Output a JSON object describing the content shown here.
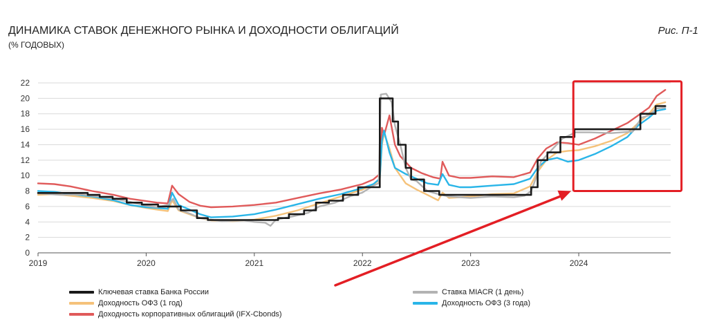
{
  "header": {
    "title": "ДИНАМИКА СТАВОК ДЕНЕЖНОГО РЫНКА И ДОХОДНОСТИ ОБЛИГАЦИЙ",
    "subtitle": "(% ГОДОВЫХ)",
    "figure_ref": "Рис. П-1"
  },
  "colors": {
    "key_rate": "#1a1a1a",
    "miacr": "#b3b3b3",
    "ofz1": "#f5c27a",
    "ofz3": "#29b5e8",
    "corp": "#e05a5a",
    "highlight": "#e31e24",
    "grid": "#d9d9d9"
  },
  "chart_data": {
    "type": "line",
    "title": "ДИНАМИКА СТАВОК ДЕНЕЖНОГО РЫНКА И ДОХОДНОСТИ ОБЛИГАЦИЙ",
    "ylabel": "% годовых",
    "xlim": [
      2019.0,
      2024.85
    ],
    "ylim": [
      0,
      22
    ],
    "y_ticks": [
      0,
      2,
      4,
      6,
      8,
      10,
      12,
      14,
      16,
      18,
      20,
      22
    ],
    "x_ticks": [
      {
        "value": 2019,
        "label": "2019"
      },
      {
        "value": 2020,
        "label": "2020"
      },
      {
        "value": 2021,
        "label": "2021"
      },
      {
        "value": 2022,
        "label": "2022"
      },
      {
        "value": 2023,
        "label": "2023"
      },
      {
        "value": 2024,
        "label": "2024"
      }
    ],
    "grid": true,
    "series": [
      {
        "key": "key_rate",
        "name": "Ключевая ставка Банка России",
        "color_key": "key_rate",
        "points": [
          [
            2019.0,
            7.75
          ],
          [
            2019.46,
            7.75
          ],
          [
            2019.46,
            7.5
          ],
          [
            2019.57,
            7.5
          ],
          [
            2019.57,
            7.25
          ],
          [
            2019.69,
            7.25
          ],
          [
            2019.69,
            7.0
          ],
          [
            2019.82,
            7.0
          ],
          [
            2019.82,
            6.5
          ],
          [
            2019.96,
            6.5
          ],
          [
            2019.96,
            6.25
          ],
          [
            2020.11,
            6.25
          ],
          [
            2020.11,
            6.0
          ],
          [
            2020.32,
            6.0
          ],
          [
            2020.32,
            5.5
          ],
          [
            2020.47,
            5.5
          ],
          [
            2020.47,
            4.5
          ],
          [
            2020.57,
            4.5
          ],
          [
            2020.57,
            4.25
          ],
          [
            2021.22,
            4.25
          ],
          [
            2021.22,
            4.5
          ],
          [
            2021.32,
            4.5
          ],
          [
            2021.32,
            5.0
          ],
          [
            2021.46,
            5.0
          ],
          [
            2021.46,
            5.5
          ],
          [
            2021.57,
            5.5
          ],
          [
            2021.57,
            6.5
          ],
          [
            2021.69,
            6.5
          ],
          [
            2021.69,
            6.75
          ],
          [
            2021.82,
            6.75
          ],
          [
            2021.82,
            7.5
          ],
          [
            2021.96,
            7.5
          ],
          [
            2021.96,
            8.5
          ],
          [
            2022.16,
            8.5
          ],
          [
            2022.16,
            20.0
          ],
          [
            2022.28,
            20.0
          ],
          [
            2022.28,
            17.0
          ],
          [
            2022.33,
            17.0
          ],
          [
            2022.33,
            14.0
          ],
          [
            2022.4,
            14.0
          ],
          [
            2022.4,
            11.0
          ],
          [
            2022.45,
            11.0
          ],
          [
            2022.45,
            9.5
          ],
          [
            2022.57,
            9.5
          ],
          [
            2022.57,
            8.0
          ],
          [
            2022.71,
            8.0
          ],
          [
            2022.71,
            7.5
          ],
          [
            2023.56,
            7.5
          ],
          [
            2023.56,
            8.5
          ],
          [
            2023.62,
            8.5
          ],
          [
            2023.62,
            12.0
          ],
          [
            2023.71,
            12.0
          ],
          [
            2023.71,
            13.0
          ],
          [
            2023.83,
            13.0
          ],
          [
            2023.83,
            15.0
          ],
          [
            2023.96,
            15.0
          ],
          [
            2023.96,
            16.0
          ],
          [
            2024.57,
            16.0
          ],
          [
            2024.57,
            18.0
          ],
          [
            2024.71,
            18.0
          ],
          [
            2024.71,
            19.0
          ],
          [
            2024.8,
            19.0
          ]
        ]
      },
      {
        "key": "miacr",
        "name": "Ставка MIACR (1 день)",
        "color_key": "miacr",
        "points": [
          [
            2019.0,
            7.7
          ],
          [
            2019.2,
            7.5
          ],
          [
            2019.4,
            7.55
          ],
          [
            2019.55,
            7.3
          ],
          [
            2019.7,
            7.0
          ],
          [
            2019.85,
            6.6
          ],
          [
            2020.0,
            6.1
          ],
          [
            2020.1,
            5.9
          ],
          [
            2020.2,
            6.2
          ],
          [
            2020.25,
            7.0
          ],
          [
            2020.3,
            5.6
          ],
          [
            2020.4,
            5.1
          ],
          [
            2020.5,
            4.5
          ],
          [
            2020.7,
            4.1
          ],
          [
            2020.9,
            4.2
          ],
          [
            2021.0,
            4.0
          ],
          [
            2021.1,
            3.9
          ],
          [
            2021.15,
            3.5
          ],
          [
            2021.2,
            4.3
          ],
          [
            2021.35,
            4.7
          ],
          [
            2021.5,
            5.2
          ],
          [
            2021.6,
            6.0
          ],
          [
            2021.75,
            6.5
          ],
          [
            2021.9,
            7.4
          ],
          [
            2022.0,
            7.8
          ],
          [
            2022.1,
            8.7
          ],
          [
            2022.15,
            9.0
          ],
          [
            2022.17,
            20.5
          ],
          [
            2022.22,
            20.6
          ],
          [
            2022.27,
            19.5
          ],
          [
            2022.3,
            16.5
          ],
          [
            2022.35,
            14.0
          ],
          [
            2022.4,
            11.0
          ],
          [
            2022.45,
            9.5
          ],
          [
            2022.5,
            9.3
          ],
          [
            2022.6,
            8.0
          ],
          [
            2022.7,
            7.6
          ],
          [
            2022.8,
            7.3
          ],
          [
            2022.9,
            7.2
          ],
          [
            2023.0,
            7.1
          ],
          [
            2023.2,
            7.3
          ],
          [
            2023.4,
            7.2
          ],
          [
            2023.5,
            7.4
          ],
          [
            2023.56,
            8.0
          ],
          [
            2023.6,
            9.5
          ],
          [
            2023.65,
            11.8
          ],
          [
            2023.72,
            12.9
          ],
          [
            2023.85,
            14.8
          ],
          [
            2023.97,
            15.6
          ],
          [
            2024.1,
            15.6
          ],
          [
            2024.3,
            15.5
          ],
          [
            2024.5,
            15.7
          ],
          [
            2024.58,
            17.5
          ],
          [
            2024.65,
            17.8
          ],
          [
            2024.72,
            18.7
          ],
          [
            2024.8,
            18.8
          ]
        ]
      },
      {
        "key": "ofz1",
        "name": "Доходность ОФЗ (1 год)",
        "color_key": "ofz1",
        "points": [
          [
            2019.0,
            7.5
          ],
          [
            2019.15,
            7.6
          ],
          [
            2019.3,
            7.4
          ],
          [
            2019.5,
            7.1
          ],
          [
            2019.7,
            6.7
          ],
          [
            2019.85,
            6.2
          ],
          [
            2020.0,
            5.8
          ],
          [
            2020.1,
            5.6
          ],
          [
            2020.2,
            5.4
          ],
          [
            2020.24,
            6.8
          ],
          [
            2020.3,
            5.5
          ],
          [
            2020.4,
            5.0
          ],
          [
            2020.5,
            4.5
          ],
          [
            2020.6,
            4.2
          ],
          [
            2020.8,
            4.1
          ],
          [
            2021.0,
            4.3
          ],
          [
            2021.2,
            4.8
          ],
          [
            2021.4,
            5.5
          ],
          [
            2021.6,
            6.4
          ],
          [
            2021.8,
            7.3
          ],
          [
            2022.0,
            8.2
          ],
          [
            2022.1,
            8.8
          ],
          [
            2022.16,
            9.5
          ],
          [
            2022.18,
            14.0
          ],
          [
            2022.2,
            15.5
          ],
          [
            2022.25,
            13.5
          ],
          [
            2022.3,
            11.0
          ],
          [
            2022.4,
            9.0
          ],
          [
            2022.5,
            8.2
          ],
          [
            2022.6,
            7.5
          ],
          [
            2022.7,
            6.8
          ],
          [
            2022.74,
            7.8
          ],
          [
            2022.8,
            7.1
          ],
          [
            2022.9,
            7.2
          ],
          [
            2023.0,
            7.3
          ],
          [
            2023.2,
            7.6
          ],
          [
            2023.4,
            7.7
          ],
          [
            2023.55,
            8.6
          ],
          [
            2023.62,
            10.5
          ],
          [
            2023.7,
            12.0
          ],
          [
            2023.8,
            13.0
          ],
          [
            2023.9,
            13.2
          ],
          [
            2024.0,
            13.3
          ],
          [
            2024.15,
            13.8
          ],
          [
            2024.3,
            14.5
          ],
          [
            2024.45,
            15.5
          ],
          [
            2024.55,
            16.8
          ],
          [
            2024.65,
            18.0
          ],
          [
            2024.72,
            19.2
          ],
          [
            2024.8,
            19.5
          ]
        ]
      },
      {
        "key": "ofz3",
        "name": "Доходность ОФЗ (3 года)",
        "color_key": "ofz3",
        "points": [
          [
            2019.0,
            8.0
          ],
          [
            2019.15,
            7.9
          ],
          [
            2019.3,
            7.6
          ],
          [
            2019.5,
            7.3
          ],
          [
            2019.7,
            6.8
          ],
          [
            2019.85,
            6.2
          ],
          [
            2020.0,
            5.9
          ],
          [
            2020.1,
            5.8
          ],
          [
            2020.2,
            5.7
          ],
          [
            2020.24,
            7.8
          ],
          [
            2020.3,
            6.2
          ],
          [
            2020.4,
            5.6
          ],
          [
            2020.5,
            5.0
          ],
          [
            2020.6,
            4.6
          ],
          [
            2020.8,
            4.7
          ],
          [
            2021.0,
            5.0
          ],
          [
            2021.2,
            5.6
          ],
          [
            2021.4,
            6.3
          ],
          [
            2021.6,
            7.0
          ],
          [
            2021.8,
            7.6
          ],
          [
            2022.0,
            8.4
          ],
          [
            2022.1,
            8.9
          ],
          [
            2022.16,
            9.6
          ],
          [
            2022.18,
            14.5
          ],
          [
            2022.2,
            15.8
          ],
          [
            2022.25,
            13.0
          ],
          [
            2022.3,
            11.0
          ],
          [
            2022.4,
            10.2
          ],
          [
            2022.5,
            9.6
          ],
          [
            2022.6,
            9.0
          ],
          [
            2022.7,
            8.8
          ],
          [
            2022.74,
            10.2
          ],
          [
            2022.8,
            8.8
          ],
          [
            2022.9,
            8.5
          ],
          [
            2023.0,
            8.5
          ],
          [
            2023.2,
            8.7
          ],
          [
            2023.4,
            8.9
          ],
          [
            2023.55,
            9.6
          ],
          [
            2023.62,
            11.0
          ],
          [
            2023.7,
            12.0
          ],
          [
            2023.8,
            12.3
          ],
          [
            2023.9,
            11.8
          ],
          [
            2024.0,
            12.0
          ],
          [
            2024.15,
            12.8
          ],
          [
            2024.3,
            13.8
          ],
          [
            2024.45,
            15.0
          ],
          [
            2024.55,
            16.5
          ],
          [
            2024.65,
            17.5
          ],
          [
            2024.72,
            18.4
          ],
          [
            2024.8,
            18.6
          ]
        ]
      },
      {
        "key": "corp",
        "name": "Доходность корпоративных облигаций (IFX-Cbonds)",
        "color_key": "corp",
        "points": [
          [
            2019.0,
            9.0
          ],
          [
            2019.15,
            8.9
          ],
          [
            2019.3,
            8.6
          ],
          [
            2019.5,
            8.0
          ],
          [
            2019.7,
            7.5
          ],
          [
            2019.85,
            7.0
          ],
          [
            2020.0,
            6.7
          ],
          [
            2020.1,
            6.5
          ],
          [
            2020.2,
            6.4
          ],
          [
            2020.24,
            8.7
          ],
          [
            2020.3,
            7.6
          ],
          [
            2020.4,
            6.6
          ],
          [
            2020.5,
            6.1
          ],
          [
            2020.6,
            5.9
          ],
          [
            2020.8,
            6.0
          ],
          [
            2021.0,
            6.2
          ],
          [
            2021.2,
            6.5
          ],
          [
            2021.4,
            7.1
          ],
          [
            2021.6,
            7.7
          ],
          [
            2021.8,
            8.2
          ],
          [
            2022.0,
            8.9
          ],
          [
            2022.1,
            9.5
          ],
          [
            2022.16,
            10.2
          ],
          [
            2022.18,
            16.2
          ],
          [
            2022.2,
            15.2
          ],
          [
            2022.25,
            17.8
          ],
          [
            2022.3,
            14.0
          ],
          [
            2022.35,
            12.5
          ],
          [
            2022.45,
            11.0
          ],
          [
            2022.55,
            10.3
          ],
          [
            2022.65,
            9.8
          ],
          [
            2022.72,
            9.6
          ],
          [
            2022.74,
            11.8
          ],
          [
            2022.8,
            10.0
          ],
          [
            2022.9,
            9.7
          ],
          [
            2023.0,
            9.7
          ],
          [
            2023.2,
            9.9
          ],
          [
            2023.4,
            9.8
          ],
          [
            2023.55,
            10.4
          ],
          [
            2023.62,
            12.2
          ],
          [
            2023.7,
            13.5
          ],
          [
            2023.8,
            14.3
          ],
          [
            2023.9,
            14.2
          ],
          [
            2024.0,
            14.0
          ],
          [
            2024.15,
            14.8
          ],
          [
            2024.3,
            15.8
          ],
          [
            2024.45,
            16.8
          ],
          [
            2024.55,
            17.8
          ],
          [
            2024.65,
            18.8
          ],
          [
            2024.72,
            20.3
          ],
          [
            2024.8,
            21.1
          ]
        ]
      }
    ],
    "annotation": {
      "highlight_box": {
        "x_range": [
          2023.95,
          2024.95
        ],
        "y_range": [
          8,
          22.2
        ]
      },
      "arrow": {
        "to_x": 2023.93,
        "to_y": 8.0
      }
    }
  },
  "legend": [
    {
      "label": "Ключевая ставка Банка России",
      "color_key": "key_rate"
    },
    {
      "label": "Ставка MIACR (1 день)",
      "color_key": "miacr"
    },
    {
      "label": "Доходность ОФЗ (1 год)",
      "color_key": "ofz1"
    },
    {
      "label": "Доходность ОФЗ (3 года)",
      "color_key": "ofz3"
    },
    {
      "label": "Доходность корпоративных облигаций (IFX-Cbonds)",
      "color_key": "corp"
    }
  ]
}
